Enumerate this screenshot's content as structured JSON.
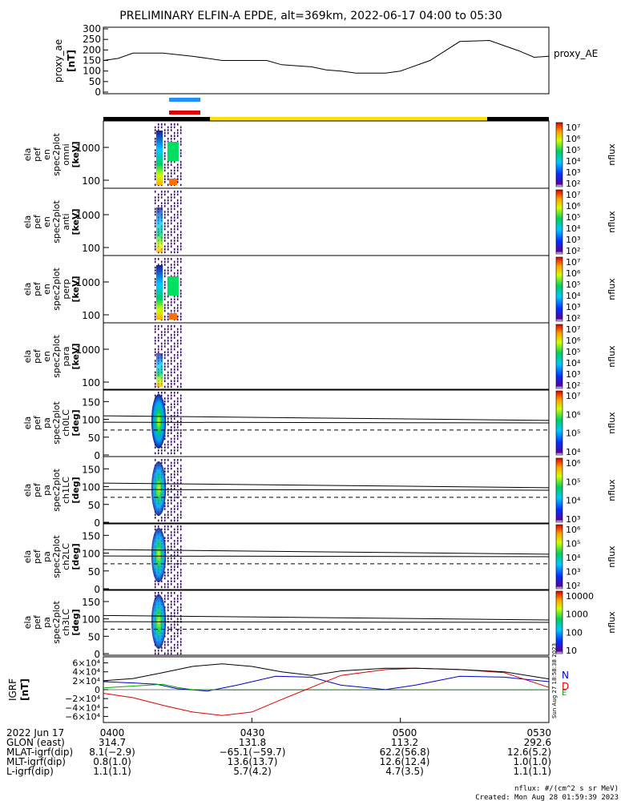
{
  "title": "PRELIMINARY ELFIN-A EPDE, alt=369km, 2022-06-17 04:00 to 05:30",
  "colors": {
    "sun_bar": "#ffe000",
    "shadow_bar": "#000000",
    "science_blue": "#1e90ff",
    "science_red": "#e00000",
    "bfield_n": "#0000cc",
    "bfield_e": "#00aa00",
    "bfield_d": "#dd0000",
    "bfield_total": "#000000"
  },
  "proxy_panel": {
    "ylabel_lines": [
      "proxy_ae",
      "[nT]"
    ],
    "legend": "proxy_AE",
    "yticks": [
      "300",
      "250",
      "200",
      "150",
      "100",
      "50",
      "0"
    ]
  },
  "spectrogram_panels": [
    {
      "label_lines": [
        "ela",
        "pef",
        "en",
        "spec2plot",
        "omni",
        "[keV]"
      ],
      "yticks": [
        "1000",
        "100"
      ],
      "cbar_ticks": [
        "10⁷",
        "10⁶",
        "10⁵",
        "10⁴",
        "10³",
        "10²"
      ],
      "cbar_label": "nflux"
    },
    {
      "label_lines": [
        "ela",
        "pef",
        "en",
        "spec2plot",
        "anti",
        "[keV]"
      ],
      "yticks": [
        "1000",
        "100"
      ],
      "cbar_ticks": [
        "10⁷",
        "10⁶",
        "10⁵",
        "10⁴",
        "10³",
        "10²"
      ],
      "cbar_label": "nflux"
    },
    {
      "label_lines": [
        "ela",
        "pef",
        "en",
        "spec2plot",
        "perp",
        "[keV]"
      ],
      "yticks": [
        "1000",
        "100"
      ],
      "cbar_ticks": [
        "10⁷",
        "10⁶",
        "10⁵",
        "10⁴",
        "10³",
        "10²"
      ],
      "cbar_label": "nflux"
    },
    {
      "label_lines": [
        "ela",
        "pef",
        "en",
        "spec2plot",
        "para",
        "[keV]"
      ],
      "yticks": [
        "1000",
        "100"
      ],
      "cbar_ticks": [
        "10⁷",
        "10⁶",
        "10⁵",
        "10⁴",
        "10³",
        "10²"
      ],
      "cbar_label": "nflux"
    },
    {
      "label_lines": [
        "ela",
        "pef",
        "pa",
        "spec2plot",
        "ch0LC",
        "[deg]"
      ],
      "yticks": [
        "150",
        "100",
        "50",
        "0"
      ],
      "cbar_ticks": [
        "10⁷",
        "10⁶",
        "10⁵",
        "10⁴"
      ],
      "cbar_label": "nflux"
    },
    {
      "label_lines": [
        "ela",
        "pef",
        "pa",
        "spec2plot",
        "ch1LC",
        "[deg]"
      ],
      "yticks": [
        "150",
        "100",
        "50",
        "0"
      ],
      "cbar_ticks": [
        "10⁶",
        "10⁵",
        "10⁴",
        "10³"
      ],
      "cbar_label": "nflux"
    },
    {
      "label_lines": [
        "ela",
        "pef",
        "pa",
        "spec2plot",
        "ch2LC",
        "[deg]"
      ],
      "yticks": [
        "150",
        "100",
        "50",
        "0"
      ],
      "cbar_ticks": [
        "10⁶",
        "10⁵",
        "10⁴",
        "10³",
        "10²"
      ],
      "cbar_label": "nflux"
    },
    {
      "label_lines": [
        "ela",
        "pef",
        "pa",
        "spec2plot",
        "ch3LC",
        "[deg]"
      ],
      "yticks": [
        "150",
        "100",
        "50",
        "0"
      ],
      "cbar_ticks": [
        "10000",
        "1000",
        "100",
        "10"
      ],
      "cbar_label": "nflux"
    }
  ],
  "igrf_panel": {
    "ylabel_lines": [
      "IGRF",
      "[nT]"
    ],
    "yticks": [
      "6×10⁴",
      "4×10⁴",
      "2×10⁴",
      "0",
      "−2×10⁴",
      "−4×10⁴",
      "−6×10⁴"
    ],
    "legend": [
      "N",
      "E",
      "D"
    ],
    "side_stamp": "Sun Aug 27 18:58:38 2023"
  },
  "footer": {
    "rows": [
      [
        "2022 Jun 17",
        "0400",
        "0430",
        "0500",
        "0530"
      ],
      [
        "GLON (east)",
        "314.7",
        "131.8",
        "113.2",
        "292.6"
      ],
      [
        "MLAT-igrf(dip)",
        "8.1(−2.9)",
        "−65.1(−59.7)",
        "62.2(56.8)",
        "12.6(5.2)"
      ],
      [
        "MLT-igrf(dip)",
        "0.8(1.0)",
        "13.6(13.7)",
        "12.6(12.4)",
        "1.0(1.0)"
      ],
      [
        "L-igrf(dip)",
        "1.1(1.1)",
        "5.7(4.2)",
        "4.7(3.5)",
        "1.1(1.1)"
      ]
    ],
    "units_note": "nflux: #/(cm^2 s sr MeV)",
    "created": "Created: Mon Aug 28 01:59:39 2023"
  },
  "chart_data": [
    {
      "type": "line",
      "name": "proxy_AE",
      "x_unit": "hours UT",
      "xlim": [
        4.0,
        5.5
      ],
      "ylim": [
        0,
        300
      ],
      "x": [
        4.0,
        4.05,
        4.1,
        4.2,
        4.3,
        4.4,
        4.5,
        4.55,
        4.6,
        4.7,
        4.75,
        4.8,
        4.85,
        4.95,
        5.0,
        5.1,
        5.2,
        5.3,
        5.35,
        5.4,
        5.45,
        5.5
      ],
      "y": [
        150,
        160,
        185,
        185,
        170,
        150,
        150,
        150,
        130,
        120,
        105,
        100,
        90,
        90,
        100,
        150,
        240,
        245,
        220,
        195,
        165,
        170
      ]
    },
    {
      "type": "heatmap",
      "name": "spectrograms",
      "active_interval_hours": [
        4.167,
        4.227
      ],
      "science_zone_hours": [
        4.2,
        4.233
      ]
    },
    {
      "type": "line",
      "name": "IGRF",
      "x_unit": "hours UT",
      "xlim": [
        4.0,
        5.5
      ],
      "ylim": [
        -70000,
        70000
      ],
      "series": [
        {
          "name": "N",
          "x": [
            4.0,
            4.1,
            4.18,
            4.25,
            4.35,
            4.45,
            4.58,
            4.7,
            4.8,
            4.95,
            5.05,
            5.2,
            5.35,
            5.5
          ],
          "y": [
            18000,
            15000,
            12000,
            2000,
            -3000,
            10000,
            30000,
            28000,
            10000,
            200,
            10000,
            30000,
            28000,
            18000
          ]
        },
        {
          "name": "E",
          "x": [
            4.0,
            4.1,
            4.2,
            4.25,
            4.3,
            4.45,
            4.7,
            4.9,
            5.1,
            5.3,
            5.5
          ],
          "y": [
            4000,
            8000,
            12000,
            5000,
            0,
            -800,
            -500,
            -500,
            -400,
            -500,
            -500
          ]
        },
        {
          "name": "D",
          "x": [
            4.0,
            4.1,
            4.2,
            4.3,
            4.4,
            4.5,
            4.6,
            4.7,
            4.8,
            4.95,
            5.05,
            5.2,
            5.35,
            5.5
          ],
          "y": [
            -8000,
            -18000,
            -35000,
            -50000,
            -58000,
            -50000,
            -22000,
            5000,
            32000,
            45000,
            48000,
            45000,
            38000,
            5000
          ]
        },
        {
          "name": "total",
          "x": [
            4.0,
            4.1,
            4.2,
            4.3,
            4.4,
            4.5,
            4.6,
            4.7,
            4.8,
            4.95,
            5.05,
            5.2,
            5.35,
            5.5
          ],
          "y": [
            20000,
            25000,
            38000,
            52000,
            58000,
            52000,
            40000,
            32000,
            42000,
            48000,
            48000,
            45000,
            40000,
            24000
          ]
        }
      ]
    }
  ]
}
